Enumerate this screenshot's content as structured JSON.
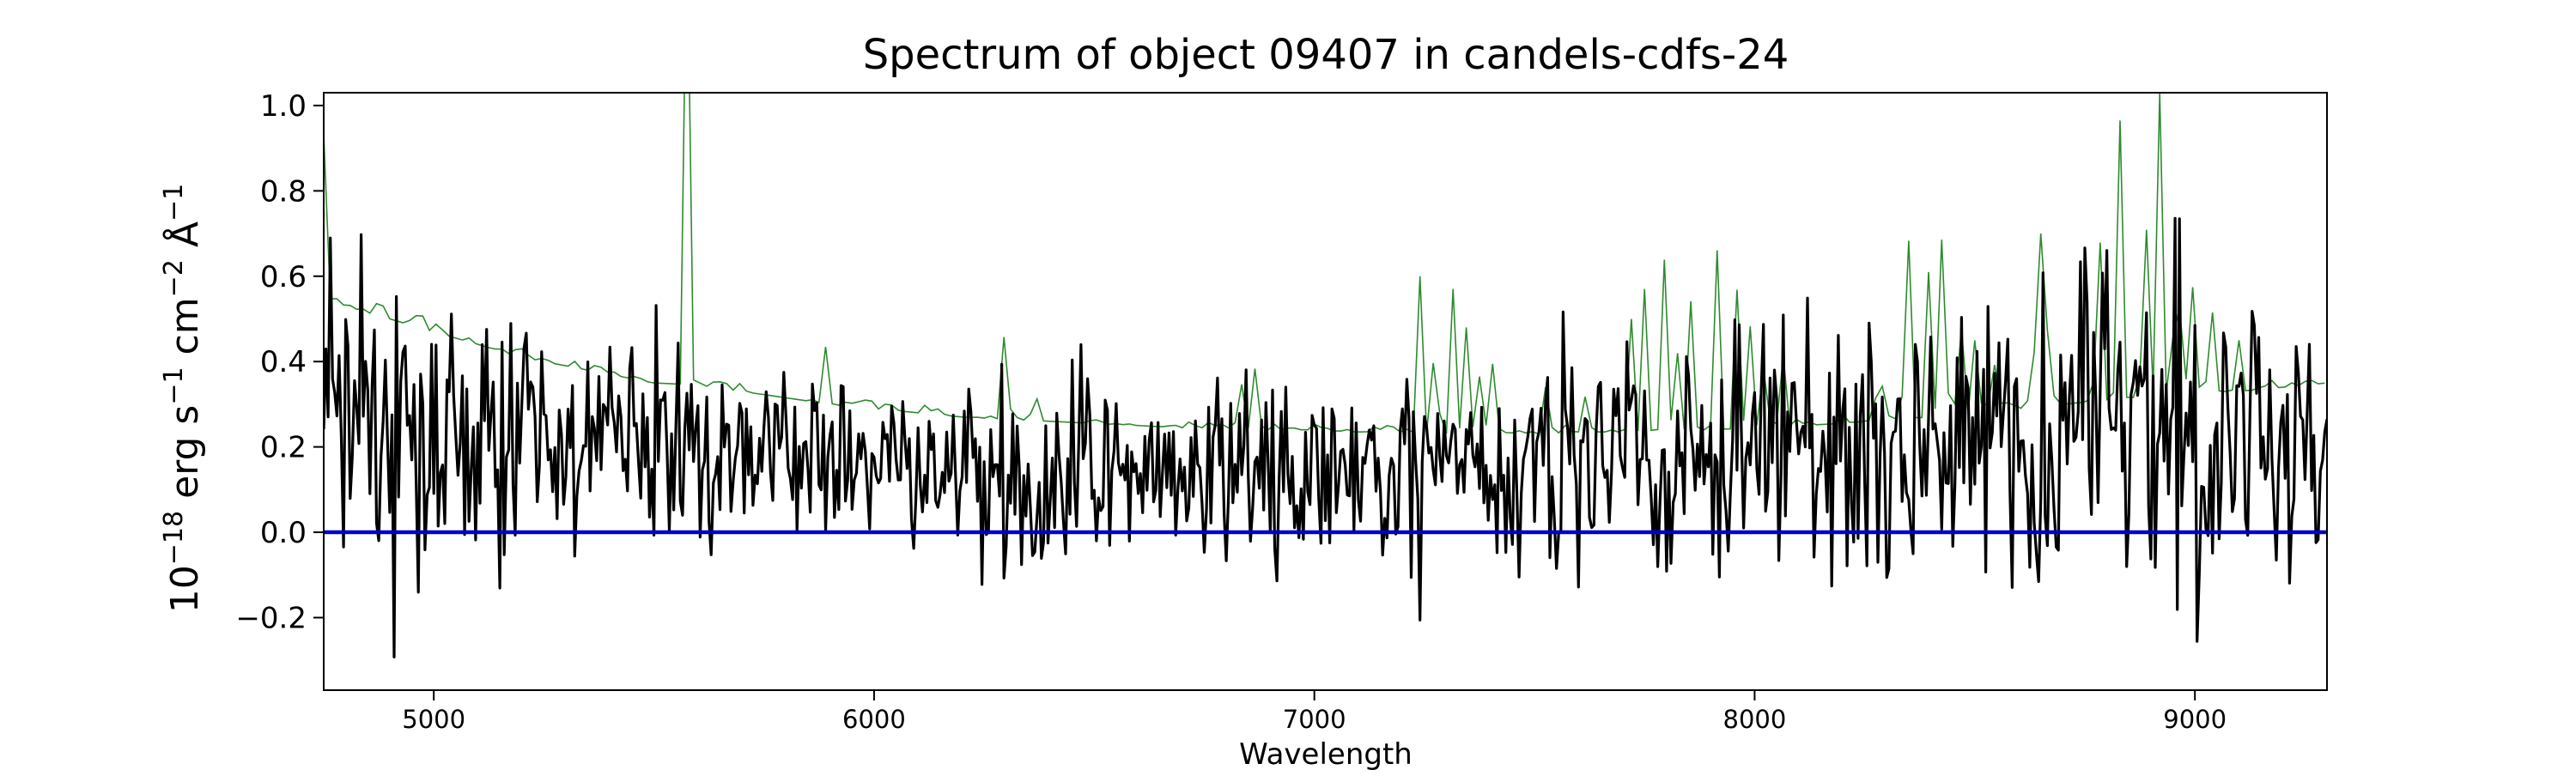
{
  "chart_data": {
    "type": "line",
    "title": "Spectrum of object 09407 in candels-cdfs-24",
    "xlabel": "Wavelength",
    "ylabel_base": "10",
    "ylabel_exp": "−18",
    "ylabel_unit_erg": "erg s",
    "ylabel_exp_s": "−1",
    "ylabel_unit_cm": "cm",
    "ylabel_exp_cm": "−2",
    "ylabel_unit_ang": "Å",
    "ylabel_exp_ang": "−1",
    "xlim": [
      4750,
      9300
    ],
    "ylim": [
      -0.37,
      1.03
    ],
    "x_ticks": [
      5000,
      6000,
      7000,
      8000,
      9000
    ],
    "x_tick_labels": [
      "5000",
      "6000",
      "7000",
      "8000",
      "9000"
    ],
    "y_ticks": [
      -0.2,
      0.0,
      0.2,
      0.4,
      0.6,
      0.8,
      1.0
    ],
    "y_tick_labels": [
      "−0.2",
      "0.0",
      "0.2",
      "0.4",
      "0.6",
      "0.8",
      "1.0"
    ],
    "grid": false,
    "legend": "none",
    "series": [
      {
        "role": "error",
        "color": "#2e8b2e",
        "sample_step": 15,
        "x_start": 4750,
        "x_end": 9300,
        "envelope": [
          [
            4750,
            0.84
          ],
          [
            4760,
            0.55
          ],
          [
            4800,
            0.53
          ],
          [
            4900,
            0.5
          ],
          [
            5000,
            0.47
          ],
          [
            5100,
            0.44
          ],
          [
            5200,
            0.41
          ],
          [
            5300,
            0.39
          ],
          [
            5400,
            0.37
          ],
          [
            5500,
            0.35
          ],
          [
            5600,
            0.345
          ],
          [
            5700,
            0.33
          ],
          [
            5800,
            0.315
          ],
          [
            5900,
            0.3
          ],
          [
            6000,
            0.29
          ],
          [
            6100,
            0.28
          ],
          [
            6200,
            0.27
          ],
          [
            6300,
            0.265
          ],
          [
            6400,
            0.26
          ],
          [
            6500,
            0.255
          ],
          [
            6600,
            0.25
          ],
          [
            6700,
            0.245
          ],
          [
            6800,
            0.245
          ],
          [
            6900,
            0.24
          ],
          [
            7000,
            0.24
          ],
          [
            7100,
            0.235
          ],
          [
            7200,
            0.235
          ],
          [
            7300,
            0.23
          ],
          [
            7400,
            0.23
          ],
          [
            7500,
            0.23
          ],
          [
            7600,
            0.235
          ],
          [
            7700,
            0.235
          ],
          [
            7800,
            0.24
          ],
          [
            7900,
            0.24
          ],
          [
            8000,
            0.245
          ],
          [
            8100,
            0.25
          ],
          [
            8200,
            0.255
          ],
          [
            8300,
            0.265
          ],
          [
            8400,
            0.27
          ],
          [
            8500,
            0.28
          ],
          [
            8600,
            0.29
          ],
          [
            8700,
            0.3
          ],
          [
            8800,
            0.31
          ],
          [
            8900,
            0.32
          ],
          [
            9000,
            0.33
          ],
          [
            9100,
            0.33
          ],
          [
            9200,
            0.34
          ],
          [
            9300,
            0.35
          ]
        ],
        "spikes": [
          [
            5577,
            1.6
          ],
          [
            5892,
            0.45
          ],
          [
            6300,
            0.65
          ],
          [
            6364,
            0.4
          ],
          [
            6830,
            0.45
          ],
          [
            6863,
            0.4
          ],
          [
            7240,
            0.6
          ],
          [
            7276,
            0.68
          ],
          [
            7316,
            0.58
          ],
          [
            7341,
            0.62
          ],
          [
            7370,
            0.5
          ],
          [
            7400,
            0.56
          ],
          [
            7530,
            0.45
          ],
          [
            7620,
            0.4
          ],
          [
            7720,
            0.5
          ],
          [
            7750,
            0.57
          ],
          [
            7794,
            0.65
          ],
          [
            7820,
            0.6
          ],
          [
            7854,
            0.55
          ],
          [
            7913,
            0.71
          ],
          [
            7964,
            0.75
          ],
          [
            7993,
            0.55
          ],
          [
            8025,
            0.52
          ],
          [
            8062,
            0.46
          ],
          [
            8283,
            0.57
          ],
          [
            8345,
            1.1
          ],
          [
            8399,
            0.8
          ],
          [
            8430,
            1.1
          ],
          [
            8465,
            0.68
          ],
          [
            8505,
            0.62
          ],
          [
            8550,
            0.5
          ],
          [
            8630,
            0.55
          ],
          [
            8650,
            0.7
          ],
          [
            8670,
            0.65
          ],
          [
            8780,
            1.05
          ],
          [
            8827,
            1.15
          ],
          [
            8885,
            1.1
          ],
          [
            8919,
            1.05
          ],
          [
            8958,
            1.1
          ],
          [
            8990,
            0.82
          ],
          [
            9035,
            0.7
          ],
          [
            9100,
            0.45
          ]
        ]
      },
      {
        "role": "flux",
        "color": "#000000",
        "sample_step": 5,
        "seed": 9407,
        "baseline": [
          [
            4750,
            0.35
          ],
          [
            4800,
            0.3
          ],
          [
            5000,
            0.25
          ],
          [
            5500,
            0.18
          ],
          [
            6000,
            0.14
          ],
          [
            6500,
            0.13
          ],
          [
            7000,
            0.14
          ],
          [
            7500,
            0.15
          ],
          [
            8000,
            0.17
          ],
          [
            8500,
            0.2
          ],
          [
            8800,
            0.25
          ],
          [
            9000,
            0.2
          ],
          [
            9300,
            0.18
          ]
        ],
        "noise": [
          [
            4750,
            0.22
          ],
          [
            5000,
            0.18
          ],
          [
            5500,
            0.13
          ],
          [
            6000,
            0.12
          ],
          [
            6500,
            0.11
          ],
          [
            7000,
            0.11
          ],
          [
            7500,
            0.13
          ],
          [
            8000,
            0.14
          ],
          [
            8300,
            0.16
          ],
          [
            8500,
            0.18
          ],
          [
            8800,
            0.22
          ],
          [
            9000,
            0.17
          ],
          [
            9300,
            0.15
          ]
        ]
      },
      {
        "role": "zero",
        "color": "#0000cc",
        "value": 0.0
      }
    ]
  }
}
